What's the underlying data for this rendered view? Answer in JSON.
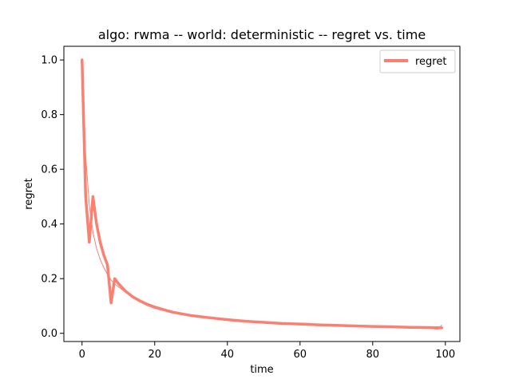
{
  "chart_data": {
    "type": "line",
    "title": "algo: rwma -- world: deterministic -- regret vs. time",
    "xlabel": "time",
    "ylabel": "regret",
    "xlim": [
      -5,
      104
    ],
    "ylim": [
      -0.03,
      1.05
    ],
    "xticks": [
      0,
      20,
      40,
      60,
      80,
      100
    ],
    "yticks": [
      0.0,
      0.2,
      0.4,
      0.6,
      0.8,
      1.0
    ],
    "xtick_labels": [
      "0",
      "20",
      "40",
      "60",
      "80",
      "100"
    ],
    "ytick_labels": [
      "0.0",
      "0.2",
      "0.4",
      "0.6",
      "0.8",
      "1.0"
    ],
    "grid": false,
    "legend_position": "top-right",
    "series": [
      {
        "name": "regret",
        "color": "#fa8072",
        "style": "thick",
        "x": [
          0,
          1,
          2,
          3,
          4,
          5,
          6,
          7,
          8,
          9,
          10,
          12,
          14,
          16,
          18,
          20,
          25,
          30,
          35,
          40,
          45,
          50,
          55,
          60,
          65,
          70,
          75,
          80,
          85,
          90,
          95,
          99
        ],
        "y": [
          1.0,
          0.5,
          0.333,
          0.5,
          0.4,
          0.333,
          0.286,
          0.25,
          0.111,
          0.2,
          0.182,
          0.154,
          0.133,
          0.118,
          0.105,
          0.095,
          0.077,
          0.065,
          0.057,
          0.05,
          0.044,
          0.04,
          0.036,
          0.034,
          0.031,
          0.029,
          0.027,
          0.025,
          0.024,
          0.022,
          0.021,
          0.02
        ]
      },
      {
        "color": "#fa8072",
        "style": "thin",
        "x": [
          0,
          1,
          2,
          3,
          4,
          5,
          6,
          7,
          8,
          9,
          10,
          12,
          14,
          16,
          18,
          20,
          25,
          30,
          35,
          40,
          45,
          50,
          55,
          60,
          65,
          70,
          75,
          80,
          85,
          90,
          95,
          98,
          99
        ],
        "y": [
          1.0,
          0.65,
          0.47,
          0.37,
          0.31,
          0.27,
          0.24,
          0.215,
          0.195,
          0.18,
          0.17,
          0.15,
          0.135,
          0.122,
          0.11,
          0.1,
          0.08,
          0.068,
          0.06,
          0.053,
          0.047,
          0.042,
          0.038,
          0.035,
          0.032,
          0.03,
          0.028,
          0.026,
          0.024,
          0.023,
          0.018,
          0.015,
          0.03
        ]
      }
    ]
  }
}
